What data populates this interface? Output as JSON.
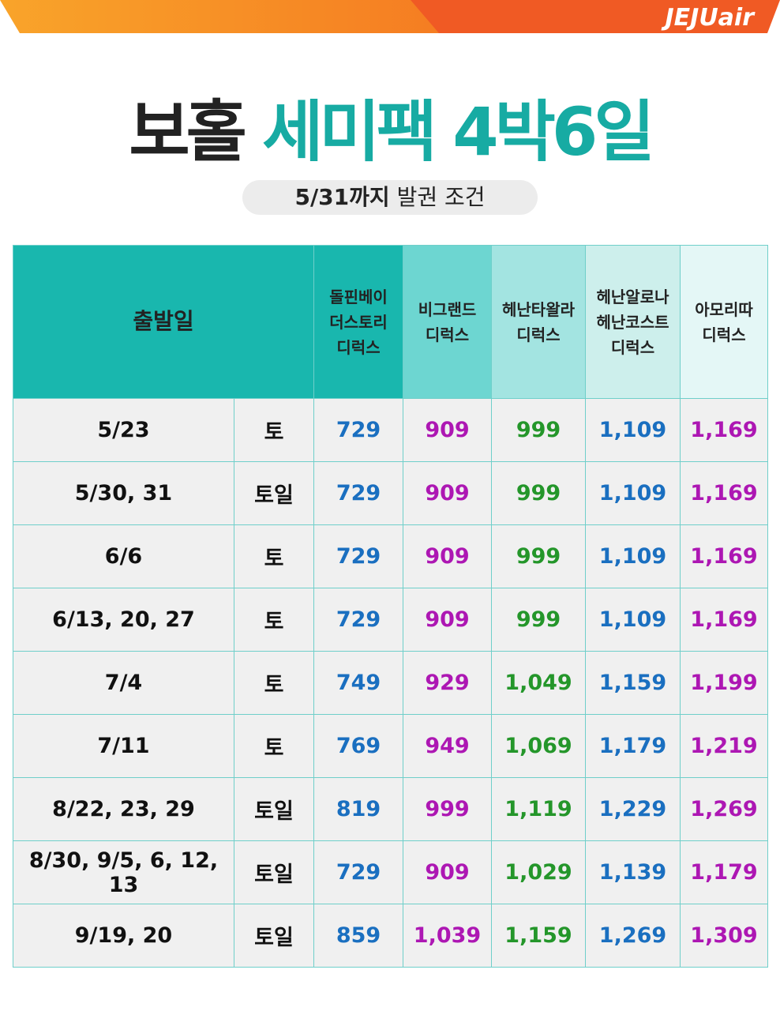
{
  "brand": "JEJUair",
  "title": {
    "part1": "보홀",
    "part2": "세미팩 4박6일"
  },
  "subtitle": {
    "bold": "5/31까지",
    "normal": "발권 조건"
  },
  "table": {
    "date_header": "출발일",
    "columns": [
      [
        "돌핀베이",
        "더스토리",
        "디럭스"
      ],
      [
        "비그랜드",
        "디럭스"
      ],
      [
        "헤난타왈라",
        "디럭스"
      ],
      [
        "헤난알로나",
        "헤난코스트",
        "디럭스"
      ],
      [
        "아모리따",
        "디럭스"
      ]
    ],
    "rows": [
      [
        "5/23",
        "토",
        "729",
        "909",
        "999",
        "1,109",
        "1,169"
      ],
      [
        "5/30, 31",
        "토일",
        "729",
        "909",
        "999",
        "1,109",
        "1,169"
      ],
      [
        "6/6",
        "토",
        "729",
        "909",
        "999",
        "1,109",
        "1,169"
      ],
      [
        "6/13, 20, 27",
        "토",
        "729",
        "909",
        "999",
        "1,109",
        "1,169"
      ],
      [
        "7/4",
        "토",
        "749",
        "929",
        "1,049",
        "1,159",
        "1,199"
      ],
      [
        "7/11",
        "토",
        "769",
        "949",
        "1,069",
        "1,179",
        "1,219"
      ],
      [
        "8/22, 23, 29",
        "토일",
        "819",
        "999",
        "1,119",
        "1,229",
        "1,269"
      ],
      [
        "8/30, 9/5, 6, 12, 13",
        "토일",
        "729",
        "909",
        "1,029",
        "1,139",
        "1,179"
      ],
      [
        "9/19, 20",
        "토일",
        "859",
        "1,039",
        "1,159",
        "1,269",
        "1,309"
      ]
    ]
  }
}
